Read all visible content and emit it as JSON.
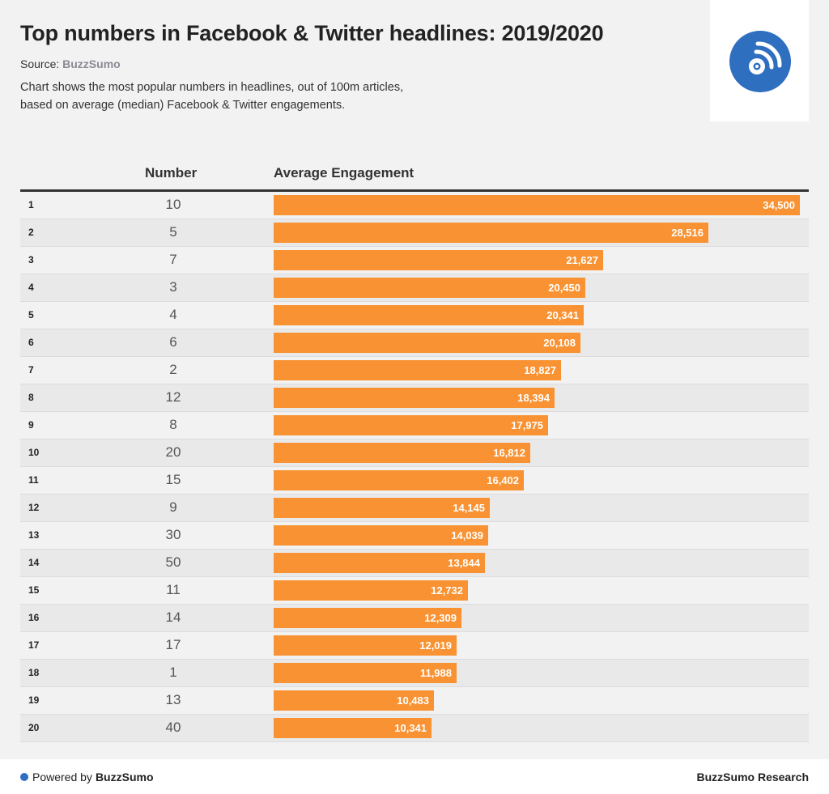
{
  "header": {
    "title": "Top numbers in Facebook & Twitter headlines: 2019/2020",
    "source_prefix": "Source:",
    "source_name": "BuzzSumo",
    "description_line1": "Chart shows the most popular numbers in headlines, out of 100m articles,",
    "description_line2": "based on average (median) Facebook & Twitter engagements.",
    "logo_icon": "rss-feed-icon"
  },
  "colors": {
    "bar": "#f89232",
    "brand": "#2f6fbf"
  },
  "footer": {
    "powered_prefix": "Powered by",
    "powered_brand": "BuzzSumo",
    "right_text": "BuzzSumo Research"
  },
  "chart_data": {
    "type": "bar",
    "orientation": "horizontal",
    "title": "Top numbers in Facebook & Twitter headlines: 2019/2020",
    "columns": [
      "Number",
      "Average Engagement"
    ],
    "ranks": [
      "1",
      "2",
      "3",
      "4",
      "5",
      "6",
      "7",
      "8",
      "9",
      "10",
      "11",
      "12",
      "13",
      "14",
      "15",
      "16",
      "17",
      "18",
      "19",
      "20"
    ],
    "categories": [
      "10",
      "5",
      "7",
      "3",
      "4",
      "6",
      "2",
      "12",
      "8",
      "20",
      "15",
      "9",
      "30",
      "50",
      "11",
      "14",
      "17",
      "1",
      "13",
      "40"
    ],
    "values": [
      34500,
      28516,
      21627,
      20450,
      20341,
      20108,
      18827,
      18394,
      17975,
      16812,
      16402,
      14145,
      14039,
      13844,
      12732,
      12309,
      12019,
      11988,
      10483,
      10341
    ],
    "value_labels": [
      "34,500",
      "28,516",
      "21,627",
      "20,450",
      "20,341",
      "20,108",
      "18,827",
      "18,394",
      "17,975",
      "16,812",
      "16,402",
      "14,145",
      "14,039",
      "13,844",
      "12,732",
      "12,309",
      "12,019",
      "11,988",
      "10,483",
      "10,341"
    ],
    "xlim": [
      0,
      34500
    ]
  }
}
